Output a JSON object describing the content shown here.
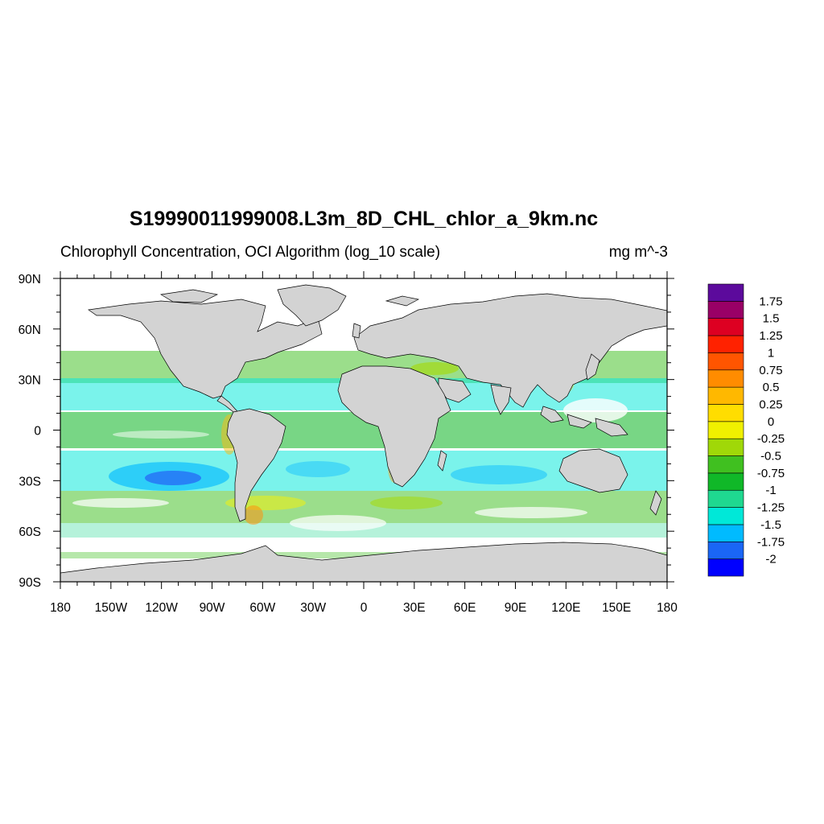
{
  "title": "S19990011999008.L3m_8D_CHL_chlor_a_9km.nc",
  "subtitle": "Chlorophyll Concentration, OCI Algorithm (log_10 scale)",
  "units": "mg m^-3",
  "map": {
    "lat_labels": [
      "90N",
      "60N",
      "30N",
      "0",
      "30S",
      "60S",
      "90S"
    ],
    "lat_values": [
      90,
      60,
      30,
      0,
      -30,
      -60,
      -90
    ],
    "lon_labels": [
      "180",
      "150W",
      "120W",
      "90W",
      "60W",
      "30W",
      "0",
      "30E",
      "60E",
      "90E",
      "120E",
      "150E",
      "180"
    ],
    "lon_values": [
      -180,
      -150,
      -120,
      -90,
      -60,
      -30,
      0,
      30,
      60,
      90,
      120,
      150,
      180
    ],
    "land_color": "#d3d3d3",
    "nodata_color": "#ffffff"
  },
  "colorbar": {
    "colors": [
      "#0000ff",
      "#1a66f5",
      "#00bbff",
      "#00e8d8",
      "#1fd890",
      "#10b828",
      "#40c020",
      "#a0d808",
      "#f0f000",
      "#ffdd00",
      "#ffb800",
      "#ff8c00",
      "#ff5500",
      "#ff2200",
      "#dd0022",
      "#990066",
      "#5c0a9c"
    ],
    "labels": [
      "-2",
      "-1.75",
      "-1.5",
      "-1.25",
      "-1",
      "-0.75",
      "-0.5",
      "-0.25",
      "0",
      "0.25",
      "0.5",
      "0.75",
      "1",
      "1.25",
      "1.5",
      "1.75"
    ]
  }
}
